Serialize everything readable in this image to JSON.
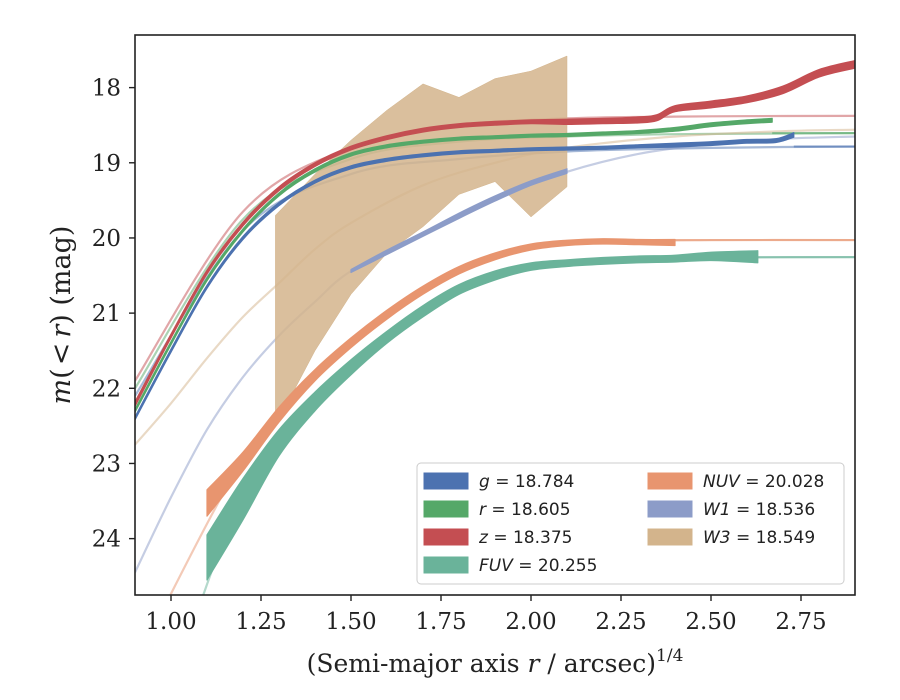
{
  "chart_data": {
    "type": "line",
    "xlabel": "(Semi-major axis r / arcsec)",
    "xlabel_parts": {
      "pre": "(Semi-major axis ",
      "var": "r",
      "post": " / arcsec)",
      "sup": "1/4"
    },
    "ylabel": "m(< r) (mag)",
    "ylabel_parts": {
      "m": "m",
      "open": "(",
      "lt": "<",
      "r": "r",
      "close": ")",
      "unit": " (mag)"
    },
    "xlim": [
      0.9,
      2.9
    ],
    "ylim": [
      24.75,
      17.3
    ],
    "y_inverted": true,
    "xticks": [
      1.0,
      1.25,
      1.5,
      1.75,
      2.0,
      2.25,
      2.5,
      2.75
    ],
    "xtick_labels": [
      "1.00",
      "1.25",
      "1.50",
      "1.75",
      "2.00",
      "2.25",
      "2.50",
      "2.75"
    ],
    "yticks": [
      18,
      19,
      20,
      21,
      22,
      23,
      24
    ],
    "ytick_labels": [
      "18",
      "19",
      "20",
      "21",
      "22",
      "23",
      "24"
    ],
    "grid": false,
    "legend_placement": "lower-right",
    "series": [
      {
        "name": "g",
        "legend_var": "g",
        "legend_value": "= 18.784",
        "color": "#4c72b0",
        "asymptote": 18.784,
        "band": [
          [
            0.9,
            22.38,
            22.42
          ],
          [
            1.0,
            21.48,
            21.52
          ],
          [
            1.1,
            20.63,
            20.67
          ],
          [
            1.2,
            19.98,
            20.02
          ],
          [
            1.3,
            19.53,
            19.57
          ],
          [
            1.4,
            19.23,
            19.27
          ],
          [
            1.5,
            19.04,
            19.08
          ],
          [
            1.6,
            18.94,
            18.98
          ],
          [
            1.7,
            18.88,
            18.92
          ],
          [
            1.8,
            18.84,
            18.88
          ],
          [
            1.9,
            18.82,
            18.86
          ],
          [
            2.0,
            18.8,
            18.84
          ],
          [
            2.1,
            18.79,
            18.83
          ],
          [
            2.2,
            18.78,
            18.82
          ],
          [
            2.3,
            18.76,
            18.8
          ],
          [
            2.4,
            18.74,
            18.79
          ],
          [
            2.5,
            18.72,
            18.77
          ],
          [
            2.6,
            18.69,
            18.74
          ],
          [
            2.68,
            18.68,
            18.73
          ],
          [
            2.73,
            18.6,
            18.66
          ]
        ],
        "model": [
          [
            0.9,
            22.1
          ],
          [
            1.2,
            19.9
          ],
          [
            1.5,
            19.15
          ],
          [
            1.8,
            18.95
          ],
          [
            2.1,
            18.85
          ],
          [
            2.4,
            18.81
          ],
          [
            2.7,
            18.79
          ],
          [
            2.9,
            18.785
          ]
        ]
      },
      {
        "name": "r",
        "legend_var": "r",
        "legend_value": "= 18.605",
        "color": "#55a868",
        "asymptote": 18.605,
        "band": [
          [
            0.9,
            22.28,
            22.32
          ],
          [
            1.0,
            21.38,
            21.42
          ],
          [
            1.1,
            20.53,
            20.57
          ],
          [
            1.2,
            19.88,
            19.92
          ],
          [
            1.3,
            19.4,
            19.44
          ],
          [
            1.4,
            19.08,
            19.12
          ],
          [
            1.5,
            18.87,
            18.91
          ],
          [
            1.6,
            18.76,
            18.8
          ],
          [
            1.7,
            18.7,
            18.74
          ],
          [
            1.8,
            18.66,
            18.7
          ],
          [
            1.9,
            18.64,
            18.68
          ],
          [
            2.0,
            18.62,
            18.66
          ],
          [
            2.1,
            18.61,
            18.65
          ],
          [
            2.2,
            18.59,
            18.63
          ],
          [
            2.3,
            18.57,
            18.61
          ],
          [
            2.4,
            18.53,
            18.58
          ],
          [
            2.5,
            18.47,
            18.52
          ],
          [
            2.6,
            18.43,
            18.48
          ],
          [
            2.67,
            18.41,
            18.46
          ]
        ],
        "model": [
          [
            0.9,
            22.0
          ],
          [
            1.2,
            19.75
          ],
          [
            1.5,
            18.95
          ],
          [
            1.8,
            18.72
          ],
          [
            2.1,
            18.65
          ],
          [
            2.4,
            18.62
          ],
          [
            2.7,
            18.61
          ],
          [
            2.9,
            18.605
          ]
        ]
      },
      {
        "name": "z",
        "legend_var": "z",
        "legend_value": "= 18.375",
        "color": "#c44e52",
        "asymptote": 18.375,
        "band": [
          [
            0.9,
            22.18,
            22.24
          ],
          [
            1.0,
            21.28,
            21.33
          ],
          [
            1.1,
            20.43,
            20.48
          ],
          [
            1.2,
            19.79,
            19.84
          ],
          [
            1.3,
            19.32,
            19.37
          ],
          [
            1.4,
            19.0,
            19.05
          ],
          [
            1.5,
            18.78,
            18.83
          ],
          [
            1.6,
            18.64,
            18.69
          ],
          [
            1.7,
            18.54,
            18.59
          ],
          [
            1.8,
            18.48,
            18.53
          ],
          [
            1.9,
            18.45,
            18.5
          ],
          [
            2.0,
            18.43,
            18.48
          ],
          [
            2.1,
            18.42,
            18.49
          ],
          [
            2.2,
            18.41,
            18.48
          ],
          [
            2.3,
            18.39,
            18.47
          ],
          [
            2.35,
            18.36,
            18.44
          ],
          [
            2.4,
            18.24,
            18.32
          ],
          [
            2.5,
            18.18,
            18.27
          ],
          [
            2.6,
            18.11,
            18.2
          ],
          [
            2.7,
            17.98,
            18.08
          ],
          [
            2.8,
            17.76,
            17.86
          ],
          [
            2.9,
            17.64,
            17.74
          ]
        ],
        "model": [
          [
            0.9,
            21.9
          ],
          [
            1.2,
            19.65
          ],
          [
            1.5,
            18.8
          ],
          [
            1.8,
            18.5
          ],
          [
            2.1,
            18.41
          ],
          [
            2.4,
            18.385
          ],
          [
            2.7,
            18.378
          ],
          [
            2.9,
            18.376
          ]
        ]
      },
      {
        "name": "FUV",
        "legend_var": "FUV",
        "legend_value": "= 20.255",
        "color": "#6ab39a",
        "asymptote": 20.255,
        "band": [
          [
            1.1,
            23.95,
            24.55
          ],
          [
            1.2,
            23.2,
            23.75
          ],
          [
            1.3,
            22.55,
            22.9
          ],
          [
            1.4,
            22.05,
            22.3
          ],
          [
            1.5,
            21.62,
            21.82
          ],
          [
            1.6,
            21.24,
            21.4
          ],
          [
            1.7,
            20.9,
            21.05
          ],
          [
            1.8,
            20.62,
            20.75
          ],
          [
            1.9,
            20.44,
            20.56
          ],
          [
            2.0,
            20.33,
            20.43
          ],
          [
            2.1,
            20.29,
            20.38
          ],
          [
            2.2,
            20.26,
            20.35
          ],
          [
            2.3,
            20.24,
            20.33
          ],
          [
            2.4,
            20.23,
            20.32
          ],
          [
            2.5,
            20.19,
            20.3
          ],
          [
            2.63,
            20.17,
            20.33
          ]
        ],
        "model": [
          [
            1.0,
            26.0
          ],
          [
            1.2,
            23.4
          ],
          [
            1.4,
            22.15
          ],
          [
            1.6,
            21.3
          ],
          [
            1.8,
            20.67
          ],
          [
            2.0,
            20.38
          ],
          [
            2.3,
            20.28
          ],
          [
            2.6,
            20.26
          ],
          [
            2.9,
            20.255
          ]
        ]
      },
      {
        "name": "NUV",
        "legend_var": "NUV",
        "legend_value": "= 20.028",
        "color": "#e8956f",
        "asymptote": 20.028,
        "band": [
          [
            1.1,
            23.35,
            23.7
          ],
          [
            1.2,
            22.85,
            23.1
          ],
          [
            1.3,
            22.25,
            22.45
          ],
          [
            1.4,
            21.75,
            21.9
          ],
          [
            1.5,
            21.33,
            21.46
          ],
          [
            1.6,
            20.96,
            21.08
          ],
          [
            1.7,
            20.64,
            20.75
          ],
          [
            1.8,
            20.38,
            20.48
          ],
          [
            1.9,
            20.2,
            20.29
          ],
          [
            2.0,
            20.08,
            20.16
          ],
          [
            2.1,
            20.03,
            20.1
          ],
          [
            2.2,
            20.01,
            20.08
          ],
          [
            2.3,
            20.02,
            20.09
          ],
          [
            2.4,
            20.02,
            20.1
          ]
        ],
        "model": [
          [
            0.95,
            25.2
          ],
          [
            1.2,
            22.95
          ],
          [
            1.4,
            21.8
          ],
          [
            1.6,
            21.0
          ],
          [
            1.8,
            20.43
          ],
          [
            2.0,
            20.12
          ],
          [
            2.2,
            20.05
          ],
          [
            2.5,
            20.03
          ],
          [
            2.9,
            20.028
          ]
        ]
      },
      {
        "name": "W1",
        "legend_var": "W1",
        "legend_value": "= 18.536",
        "color": "#8c9cc8",
        "asymptote": 18.536,
        "band": [
          [
            1.5,
            20.42,
            20.46
          ],
          [
            1.6,
            20.16,
            20.22
          ],
          [
            1.7,
            19.92,
            19.98
          ],
          [
            1.8,
            19.67,
            19.74
          ],
          [
            1.9,
            19.44,
            19.51
          ],
          [
            2.0,
            19.24,
            19.3
          ],
          [
            2.1,
            19.08,
            19.14
          ]
        ],
        "model": [
          [
            0.9,
            24.45
          ],
          [
            1.0,
            23.45
          ],
          [
            1.1,
            22.55
          ],
          [
            1.2,
            21.85
          ],
          [
            1.3,
            21.3
          ],
          [
            1.4,
            20.85
          ],
          [
            1.5,
            20.44
          ],
          [
            1.7,
            19.95
          ],
          [
            1.9,
            19.47
          ],
          [
            2.1,
            19.12
          ],
          [
            2.3,
            18.88
          ],
          [
            2.5,
            18.75
          ],
          [
            2.7,
            18.68
          ],
          [
            2.9,
            18.65
          ]
        ]
      },
      {
        "name": "W3",
        "legend_var": "W3",
        "legend_value": "= 18.549",
        "color": "#d3b48c",
        "asymptote": 18.549,
        "band": [
          [
            1.29,
            19.7,
            22.5
          ],
          [
            1.4,
            19.15,
            21.5
          ],
          [
            1.5,
            18.7,
            20.75
          ],
          [
            1.6,
            18.3,
            20.2
          ],
          [
            1.7,
            17.95,
            19.85
          ],
          [
            1.8,
            18.13,
            19.42
          ],
          [
            1.9,
            17.88,
            19.25
          ],
          [
            2.0,
            17.78,
            19.72
          ],
          [
            2.1,
            17.58,
            19.32
          ]
        ],
        "model": [
          [
            0.9,
            22.75
          ],
          [
            1.0,
            22.2
          ],
          [
            1.1,
            21.6
          ],
          [
            1.2,
            21.05
          ],
          [
            1.3,
            20.6
          ],
          [
            1.4,
            20.15
          ],
          [
            1.5,
            19.8
          ],
          [
            1.7,
            19.3
          ],
          [
            1.9,
            19.0
          ],
          [
            2.1,
            18.8
          ],
          [
            2.4,
            18.65
          ],
          [
            2.7,
            18.58
          ],
          [
            2.9,
            18.56
          ]
        ]
      }
    ]
  }
}
